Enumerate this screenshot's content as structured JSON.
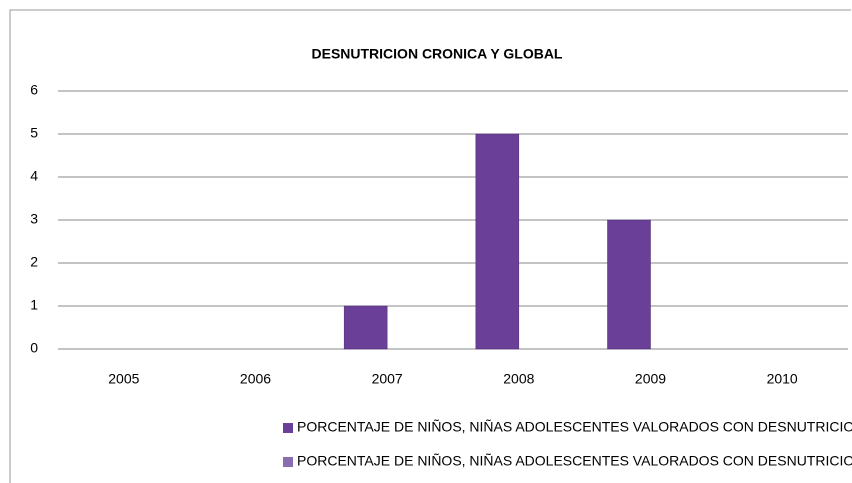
{
  "chart_data": {
    "type": "bar",
    "title": "DESNUTRICION  CRONICA Y GLOBAL",
    "categories": [
      "2005",
      "2006",
      "2007",
      "2008",
      "2009",
      "2010"
    ],
    "series": [
      {
        "name": "PORCENTAJE DE NIÑOS, NIÑAS ADOLESCENTES VALORADOS CON DESNUTRICION CRONICA",
        "color": "#6a3f98",
        "values": [
          0,
          0,
          1,
          5,
          3,
          0
        ]
      },
      {
        "name": "PORCENTAJE DE NIÑOS, NIÑAS ADOLESCENTES VALORADOS CON DESNUTRICION GLOBAL",
        "color": "#8a6cb0",
        "values": [
          0,
          0,
          0,
          0,
          0,
          0
        ]
      }
    ],
    "ylim": [
      0,
      6
    ],
    "yticks": [
      0,
      1,
      2,
      3,
      4,
      5,
      6
    ],
    "grid": true,
    "legend": "bottom"
  }
}
